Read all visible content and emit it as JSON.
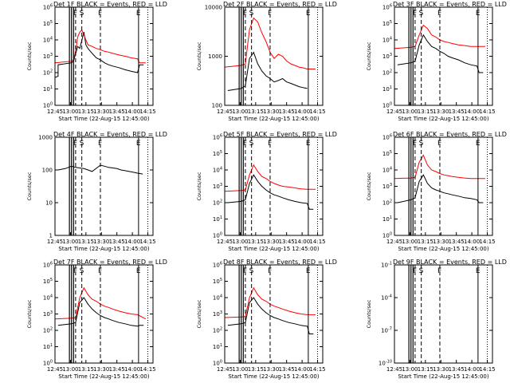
{
  "figure": {
    "x_axis_label": "Start Time (22-Aug-15 12:45:00)",
    "y_axis_label": "Counts/sec",
    "time_ticks": [
      "12:45",
      "13:00",
      "13:15",
      "13:30",
      "13:45",
      "14:00",
      "14:15"
    ],
    "colors": {
      "events": "#000000",
      "lld": "#ff0000"
    }
  },
  "chart_data": [
    {
      "type": "line",
      "title": "Det 1F BLACK = Events, RED = LLD",
      "x_unit": "minutes after 12:45",
      "xlim": [
        0,
        95
      ],
      "log_y": true,
      "ylim": [
        1,
        1000000
      ],
      "y_ticks": [
        "10^0",
        "10^1",
        "10^2",
        "10^3",
        "10^4",
        "10^5",
        "10^6"
      ],
      "markers": [
        {
          "t": 20,
          "label": "F"
        },
        {
          "t": 26,
          "label": "S"
        },
        {
          "t": 44,
          "label": "F"
        },
        {
          "t": 81,
          "label": "E"
        }
      ],
      "series": [
        {
          "name": "Events",
          "x": [
            0,
            3,
            3,
            16,
            18,
            22,
            24,
            28,
            30,
            32,
            36,
            40,
            44,
            48,
            52,
            56,
            62,
            68,
            74,
            80,
            82,
            86
          ],
          "y": [
            50,
            60,
            300,
            400,
            500,
            4000,
            3000,
            30000,
            5000,
            3000,
            1500,
            800,
            600,
            400,
            300,
            250,
            200,
            150,
            120,
            100,
            300,
            300
          ]
        },
        {
          "name": "LLD",
          "x": [
            0,
            16,
            18,
            20,
            22,
            24,
            26,
            28,
            30,
            32,
            36,
            40,
            44,
            48,
            52,
            56,
            62,
            68,
            74,
            80,
            82,
            88
          ],
          "y": [
            400,
            500,
            600,
            2000,
            15000,
            30000,
            40000,
            20000,
            10000,
            5000,
            4000,
            3000,
            2500,
            2000,
            1800,
            1500,
            1200,
            1000,
            800,
            700,
            400,
            400
          ]
        }
      ]
    },
    {
      "type": "line",
      "title": "Det 2F BLACK = Events, RED = LLD",
      "x_unit": "minutes after 12:45",
      "xlim": [
        0,
        95
      ],
      "log_y": true,
      "ylim": [
        100,
        10000
      ],
      "y_ticks": [
        "100",
        "1000",
        "10000"
      ],
      "markers": [
        {
          "t": 20,
          "label": "F"
        },
        {
          "t": 26,
          "label": "S"
        },
        {
          "t": 44,
          "label": "F"
        },
        {
          "t": 81,
          "label": "E"
        }
      ],
      "series": [
        {
          "name": "Events",
          "x": [
            3,
            16,
            20,
            24,
            28,
            32,
            36,
            40,
            44,
            48,
            52,
            56,
            60,
            64,
            68,
            72,
            76,
            80
          ],
          "y": [
            200,
            220,
            250,
            900,
            1200,
            700,
            500,
            400,
            350,
            300,
            320,
            350,
            300,
            280,
            260,
            240,
            230,
            220
          ]
        },
        {
          "name": "LLD",
          "x": [
            0,
            16,
            20,
            24,
            28,
            32,
            36,
            40,
            44,
            48,
            52,
            56,
            60,
            64,
            68,
            72,
            76,
            80,
            88
          ],
          "y": [
            600,
            650,
            700,
            3500,
            6000,
            5000,
            3000,
            2000,
            1200,
            900,
            1100,
            1000,
            800,
            700,
            650,
            600,
            580,
            550,
            550
          ]
        }
      ]
    },
    {
      "type": "line",
      "title": "Det 3F BLACK = Events, RED = LLD",
      "x_unit": "minutes after 12:45",
      "xlim": [
        0,
        95
      ],
      "log_y": true,
      "ylim": [
        1,
        1000000
      ],
      "y_ticks": [
        "10^0",
        "10^1",
        "10^2",
        "10^3",
        "10^4",
        "10^5",
        "10^6"
      ],
      "markers": [
        {
          "t": 20,
          "label": "F"
        },
        {
          "t": 26,
          "label": "S"
        },
        {
          "t": 44,
          "label": "F"
        },
        {
          "t": 81,
          "label": "E"
        }
      ],
      "series": [
        {
          "name": "Events",
          "x": [
            3,
            16,
            20,
            24,
            28,
            32,
            36,
            40,
            44,
            48,
            52,
            56,
            62,
            68,
            74,
            80,
            82,
            86
          ],
          "y": [
            300,
            400,
            500,
            5000,
            20000,
            8000,
            4000,
            3000,
            2000,
            1500,
            1000,
            800,
            600,
            400,
            300,
            250,
            100,
            100
          ]
        },
        {
          "name": "LLD",
          "x": [
            0,
            16,
            20,
            24,
            28,
            32,
            36,
            40,
            44,
            48,
            52,
            56,
            62,
            68,
            74,
            80,
            88
          ],
          "y": [
            3000,
            3500,
            4000,
            20000,
            80000,
            50000,
            20000,
            15000,
            10000,
            8000,
            7000,
            6000,
            5000,
            4500,
            4000,
            4000,
            4000
          ]
        }
      ]
    },
    {
      "type": "line",
      "title": "Det 4F BLACK = Events, RED = LLD",
      "x_unit": "minutes after 12:45",
      "xlim": [
        0,
        95
      ],
      "log_y": true,
      "ylim": [
        1,
        1000
      ],
      "y_ticks": [
        "1",
        "10",
        "100",
        "1000"
      ],
      "markers": [
        {
          "t": 20,
          "label": "F"
        },
        {
          "t": 26,
          "label": "S"
        },
        {
          "t": 44,
          "label": "F"
        },
        {
          "t": 81,
          "label": "E"
        }
      ],
      "series": [
        {
          "name": "Events",
          "x": [
            3,
            10,
            16,
            20,
            28,
            32,
            36,
            44,
            48,
            52,
            56,
            60,
            64,
            68,
            72,
            76,
            80,
            85
          ],
          "y": [
            100,
            110,
            130,
            120,
            110,
            100,
            90,
            140,
            130,
            120,
            115,
            110,
            100,
            95,
            90,
            85,
            80,
            75
          ]
        },
        {
          "name": "LLD",
          "x": [
            0,
            16,
            28,
            36,
            44,
            60,
            80,
            88
          ],
          "y": [
            1000,
            1000,
            1000,
            1000,
            1000,
            1000,
            1000,
            1000
          ]
        }
      ]
    },
    {
      "type": "line",
      "title": "Det 5F BLACK = Events, RED = LLD",
      "x_unit": "minutes after 12:45",
      "xlim": [
        0,
        95
      ],
      "log_y": true,
      "ylim": [
        1,
        1000000
      ],
      "y_ticks": [
        "10^0",
        "10^1",
        "10^2",
        "10^3",
        "10^4",
        "10^5",
        "10^6"
      ],
      "markers": [
        {
          "t": 20,
          "label": "F"
        },
        {
          "t": 26,
          "label": "S"
        },
        {
          "t": 44,
          "label": "F"
        },
        {
          "t": 81,
          "label": "E"
        }
      ],
      "series": [
        {
          "name": "Events",
          "x": [
            3,
            16,
            20,
            24,
            28,
            32,
            36,
            40,
            44,
            48,
            52,
            56,
            62,
            68,
            74,
            80,
            82,
            86
          ],
          "y": [
            100,
            120,
            150,
            1500,
            5000,
            2000,
            1000,
            600,
            400,
            300,
            250,
            200,
            150,
            120,
            100,
            90,
            40,
            40
          ]
        },
        {
          "name": "LLD",
          "x": [
            0,
            16,
            20,
            24,
            28,
            32,
            36,
            40,
            44,
            48,
            52,
            56,
            62,
            68,
            74,
            80,
            88
          ],
          "y": [
            500,
            550,
            600,
            5000,
            20000,
            8000,
            4000,
            3000,
            2000,
            1500,
            1200,
            1000,
            900,
            800,
            700,
            650,
            650
          ]
        }
      ]
    },
    {
      "type": "line",
      "title": "Det 6F BLACK = Events, RED = LLD",
      "x_unit": "minutes after 12:45",
      "xlim": [
        0,
        95
      ],
      "log_y": true,
      "ylim": [
        1,
        1000000
      ],
      "y_ticks": [
        "10^0",
        "10^1",
        "10^2",
        "10^3",
        "10^4",
        "10^5",
        "10^6"
      ],
      "markers": [
        {
          "t": 20,
          "label": "F"
        },
        {
          "t": 26,
          "label": "S"
        },
        {
          "t": 44,
          "label": "F"
        },
        {
          "t": 81,
          "label": "E"
        }
      ],
      "series": [
        {
          "name": "Events",
          "x": [
            3,
            16,
            20,
            24,
            28,
            32,
            36,
            40,
            44,
            48,
            52,
            56,
            62,
            68,
            74,
            80,
            82,
            86
          ],
          "y": [
            100,
            150,
            200,
            2000,
            5000,
            1500,
            800,
            600,
            500,
            400,
            350,
            300,
            250,
            200,
            180,
            150,
            100,
            100
          ]
        },
        {
          "name": "LLD",
          "x": [
            0,
            16,
            20,
            24,
            28,
            32,
            36,
            40,
            44,
            48,
            52,
            56,
            62,
            68,
            74,
            80,
            88
          ],
          "y": [
            3000,
            3200,
            3500,
            30000,
            80000,
            20000,
            10000,
            8000,
            6000,
            5000,
            4500,
            4000,
            3500,
            3200,
            3000,
            3000,
            3000
          ]
        }
      ]
    },
    {
      "type": "line",
      "title": "Det 7F BLACK = Events, RED = LLD",
      "x_unit": "minutes after 12:45",
      "xlim": [
        0,
        95
      ],
      "log_y": true,
      "ylim": [
        1,
        1000000
      ],
      "y_ticks": [
        "10^0",
        "10^1",
        "10^2",
        "10^3",
        "10^4",
        "10^5",
        "10^6"
      ],
      "markers": [
        {
          "t": 20,
          "label": "F"
        },
        {
          "t": 26,
          "label": "S"
        },
        {
          "t": 44,
          "label": "F"
        },
        {
          "t": 81,
          "label": "E"
        }
      ],
      "series": [
        {
          "name": "Events",
          "x": [
            3,
            16,
            20,
            24,
            28,
            32,
            36,
            40,
            44,
            48,
            52,
            56,
            62,
            68,
            74,
            80,
            82,
            86
          ],
          "y": [
            200,
            250,
            300,
            5000,
            10000,
            4000,
            2000,
            1200,
            800,
            600,
            500,
            400,
            300,
            250,
            200,
            180,
            200,
            200
          ]
        },
        {
          "name": "LLD",
          "x": [
            0,
            16,
            20,
            24,
            28,
            32,
            36,
            40,
            44,
            48,
            52,
            56,
            62,
            68,
            74,
            80,
            88
          ],
          "y": [
            500,
            550,
            600,
            10000,
            40000,
            15000,
            8000,
            6000,
            4000,
            3000,
            2500,
            2000,
            1500,
            1200,
            1000,
            900,
            500
          ]
        }
      ]
    },
    {
      "type": "line",
      "title": "Det 8F BLACK = Events, RED = LLD",
      "x_unit": "minutes after 12:45",
      "xlim": [
        0,
        95
      ],
      "log_y": true,
      "ylim": [
        1,
        1000000
      ],
      "y_ticks": [
        "10^0",
        "10^1",
        "10^2",
        "10^3",
        "10^4",
        "10^5",
        "10^6"
      ],
      "markers": [
        {
          "t": 20,
          "label": "F"
        },
        {
          "t": 26,
          "label": "S"
        },
        {
          "t": 44,
          "label": "F"
        },
        {
          "t": 81,
          "label": "E"
        }
      ],
      "series": [
        {
          "name": "Events",
          "x": [
            3,
            16,
            20,
            24,
            28,
            32,
            36,
            40,
            44,
            48,
            52,
            56,
            62,
            68,
            74,
            80,
            82,
            86
          ],
          "y": [
            200,
            250,
            300,
            5000,
            10000,
            4000,
            2000,
            1200,
            800,
            600,
            500,
            400,
            300,
            250,
            200,
            180,
            60,
            60
          ]
        },
        {
          "name": "LLD",
          "x": [
            0,
            16,
            20,
            24,
            28,
            32,
            36,
            40,
            44,
            48,
            52,
            56,
            62,
            68,
            74,
            80,
            88
          ],
          "y": [
            600,
            650,
            700,
            10000,
            40000,
            15000,
            8000,
            6000,
            4000,
            3000,
            2500,
            2000,
            1500,
            1200,
            1000,
            900,
            900
          ]
        }
      ]
    },
    {
      "type": "line",
      "title": "Det 9F BLACK = Events, RED = LLD",
      "x_unit": "minutes after 12:45",
      "xlim": [
        0,
        95
      ],
      "log_y": true,
      "ylim": [
        1e-10,
        0.1
      ],
      "y_ticks": [
        "10^-10",
        "10^-7",
        "10^-4",
        "10^-1"
      ],
      "markers": [
        {
          "t": 20,
          "label": "F"
        },
        {
          "t": 26,
          "label": "S"
        },
        {
          "t": 44,
          "label": "F"
        },
        {
          "t": 81,
          "label": "E"
        }
      ],
      "series": []
    }
  ]
}
